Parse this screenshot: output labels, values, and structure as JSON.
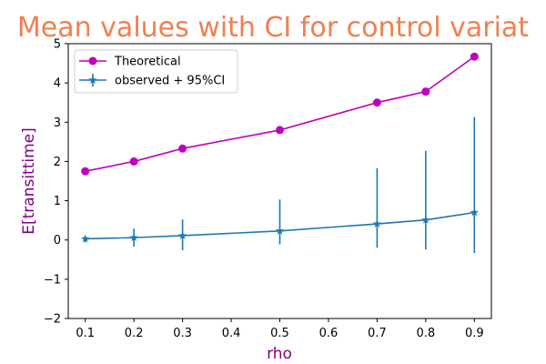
{
  "chart_data": {
    "type": "line",
    "title": "Mean values with CI for control variat",
    "xlabel": "rho",
    "ylabel": "E[transittime]",
    "x": [
      0.1,
      0.2,
      0.3,
      0.5,
      0.7,
      0.8,
      0.9
    ],
    "xticks": [
      "0.1",
      "0.2",
      "0.3",
      "0.4",
      "0.5",
      "0.6",
      "0.7",
      "0.8",
      "0.9"
    ],
    "yticks": [
      "−2",
      "−1",
      "0",
      "1",
      "2",
      "3",
      "4",
      "5"
    ],
    "xlim": [
      0.065,
      0.935
    ],
    "ylim": [
      -2,
      5
    ],
    "legend_position": "top-left",
    "grid": false,
    "series": [
      {
        "name": "Theoretical",
        "color": "#bf00bf",
        "marker": "circle",
        "values": [
          1.75,
          2.0,
          2.33,
          2.8,
          3.5,
          3.78,
          4.67
        ]
      },
      {
        "name": "observed + 95%CI",
        "color": "#1f77b4",
        "marker": "star",
        "values": [
          0.03,
          0.06,
          0.11,
          0.23,
          0.41,
          0.51,
          0.7
        ],
        "ci_lower": [
          -0.06,
          -0.17,
          -0.26,
          -0.11,
          -0.2,
          -0.24,
          -0.33
        ],
        "ci_upper": [
          0.08,
          0.29,
          0.52,
          1.03,
          1.83,
          2.27,
          3.13
        ]
      }
    ],
    "colors": {
      "title": "#f08050",
      "axis_label": "#800080",
      "axes": "#000000"
    }
  }
}
